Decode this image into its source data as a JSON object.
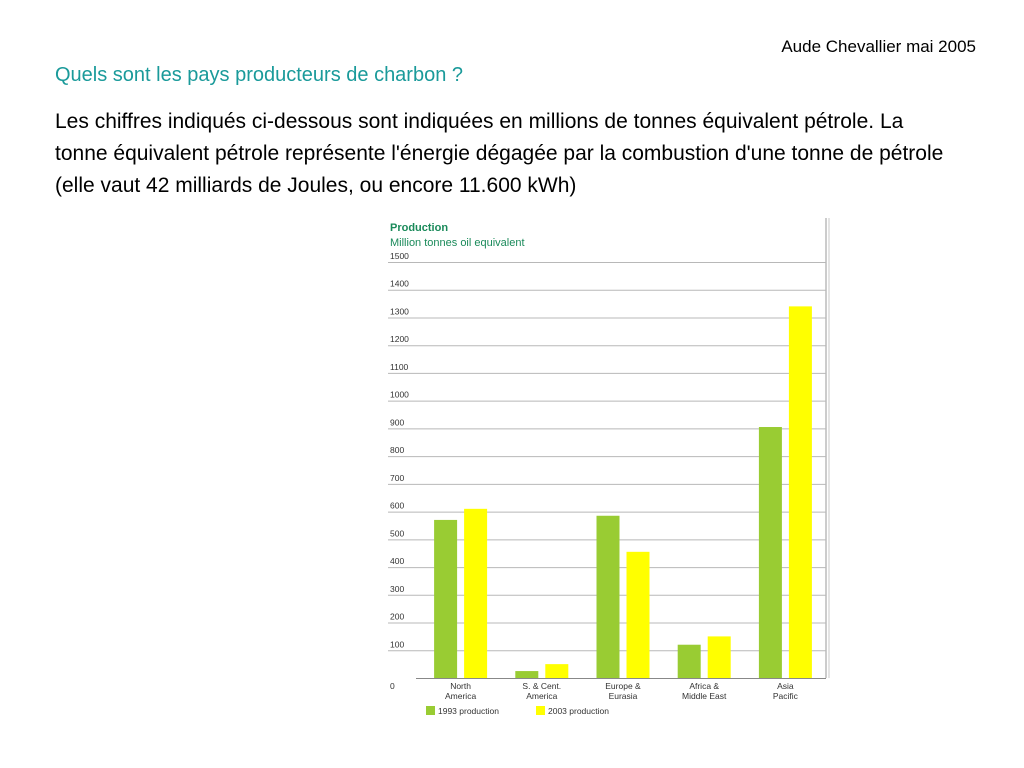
{
  "author_note": "Aude Chevallier mai 2005",
  "heading": "Quels sont les pays producteurs de charbon ?",
  "paragraph": "Les chiffres indiqués ci-dessous sont indiquées en millions de tonnes équivalent pétrole. La tonne équivalent pétrole représente l'énergie dégagée par la combustion d'une tonne de pétrole (elle vaut 42 milliards de Joules, ou encore 11.600 kWh)",
  "chart_data": {
    "type": "bar",
    "title": "Production",
    "subtitle": "Million tonnes oil equivalent",
    "categories": [
      [
        "North",
        "America"
      ],
      [
        "S. & Cent.",
        "America"
      ],
      [
        "Europe &",
        "Eurasia"
      ],
      [
        "Africa &",
        "Middle East"
      ],
      [
        "Asia",
        "Pacific"
      ]
    ],
    "series": [
      {
        "name": "1993 production",
        "color": "#99cc33",
        "values": [
          570,
          25,
          585,
          120,
          905
        ]
      },
      {
        "name": "2003 production",
        "color": "#ffff00",
        "values": [
          610,
          50,
          455,
          150,
          1340
        ]
      }
    ],
    "y_ticks": [
      0,
      100,
      200,
      300,
      400,
      500,
      600,
      700,
      800,
      900,
      1000,
      1100,
      1200,
      1300,
      1400,
      1500
    ],
    "ylim": [
      0,
      1500
    ],
    "grid": true,
    "legend_position": "bottom",
    "title_color": "#1a8a5a"
  }
}
